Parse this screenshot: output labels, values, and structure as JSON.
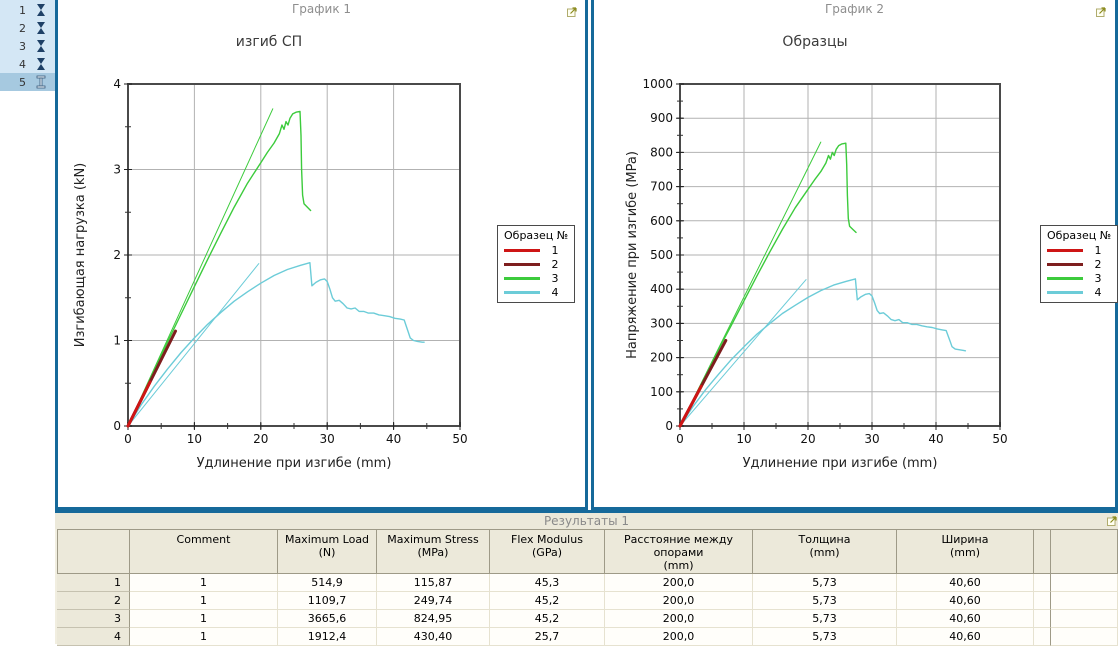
{
  "colors": {
    "panel_border": "#16699a",
    "sidebar_bg": "#d4e7f5",
    "sidebar_selected_bg": "#a6c9e0",
    "sidebar_icon": "#1e4066",
    "table_bg": "#ece9da",
    "header_text_gray": "#8e8e8e",
    "series_1": "#ce1515",
    "series_2": "#7e1e1e",
    "series_3": "#3ccb3c",
    "series_4": "#6cccd8"
  },
  "sidebar": {
    "items": [
      {
        "label": "1",
        "icon": "specimen-icon",
        "selected": false
      },
      {
        "label": "2",
        "icon": "specimen-icon",
        "selected": false
      },
      {
        "label": "3",
        "icon": "specimen-icon",
        "selected": false
      },
      {
        "label": "4",
        "icon": "specimen-icon",
        "selected": false
      },
      {
        "label": "5",
        "icon": "ibeam-cursor-icon",
        "selected": true
      }
    ]
  },
  "panels": {
    "chart1": {
      "header": "График 1",
      "export_icon": "export-icon"
    },
    "chart2": {
      "header": "График 2",
      "export_icon": "export-icon"
    }
  },
  "chart_data": [
    {
      "type": "line",
      "title": "изгиб СП",
      "xlabel": "Удлинение при изгибе (mm)",
      "ylabel": "Изгибающая нагрузка (kN)",
      "xlim": [
        0,
        50
      ],
      "ylim": [
        0,
        4
      ],
      "xticks": [
        0,
        10,
        20,
        30,
        40,
        50
      ],
      "yticks": [
        0,
        1,
        2,
        3,
        4
      ],
      "x_minor_step": 5,
      "y_minor_step": 0.5,
      "grid": true,
      "legend": {
        "title": "Образец №",
        "position": "right",
        "entries": [
          {
            "label": "1",
            "color": "#ce1515"
          },
          {
            "label": "2",
            "color": "#7e1e1e"
          },
          {
            "label": "3",
            "color": "#3ccb3c"
          },
          {
            "label": "4",
            "color": "#6cccd8"
          }
        ]
      },
      "series": [
        {
          "name": "3-fit",
          "color": "#3ccb3c",
          "width": 1,
          "points": [
            [
              0,
              0
            ],
            [
              21.8,
              3.71
            ]
          ]
        },
        {
          "name": "3",
          "color": "#3ccb3c",
          "width": 1.4,
          "points": [
            [
              0,
              0
            ],
            [
              2,
              0.33
            ],
            [
              4,
              0.66
            ],
            [
              6,
              0.99
            ],
            [
              8,
              1.31
            ],
            [
              10,
              1.63
            ],
            [
              12,
              1.95
            ],
            [
              14,
              2.26
            ],
            [
              16,
              2.56
            ],
            [
              18,
              2.84
            ],
            [
              20,
              3.08
            ],
            [
              21,
              3.2
            ],
            [
              22,
              3.31
            ],
            [
              22.8,
              3.42
            ],
            [
              23.2,
              3.52
            ],
            [
              23.5,
              3.47
            ],
            [
              23.8,
              3.56
            ],
            [
              24.1,
              3.52
            ],
            [
              24.4,
              3.6
            ],
            [
              24.8,
              3.65
            ],
            [
              25.3,
              3.67
            ],
            [
              25.9,
              3.68
            ],
            [
              26.05,
              3.4
            ],
            [
              26.15,
              3.0
            ],
            [
              26.3,
              2.7
            ],
            [
              26.5,
              2.6
            ],
            [
              27,
              2.56
            ],
            [
              27.5,
              2.52
            ]
          ]
        },
        {
          "name": "4-fit",
          "color": "#6cccd8",
          "width": 1,
          "points": [
            [
              0,
              0
            ],
            [
              19.7,
              1.9
            ]
          ]
        },
        {
          "name": "4",
          "color": "#6cccd8",
          "width": 1.4,
          "points": [
            [
              0,
              0
            ],
            [
              2,
              0.25
            ],
            [
              4,
              0.47
            ],
            [
              6,
              0.67
            ],
            [
              8,
              0.86
            ],
            [
              10,
              1.03
            ],
            [
              12,
              1.19
            ],
            [
              14,
              1.33
            ],
            [
              16,
              1.46
            ],
            [
              18,
              1.57
            ],
            [
              20,
              1.67
            ],
            [
              22,
              1.76
            ],
            [
              24,
              1.83
            ],
            [
              26,
              1.88
            ],
            [
              27.4,
              1.91
            ],
            [
              27.7,
              1.64
            ],
            [
              28.3,
              1.68
            ],
            [
              29,
              1.71
            ],
            [
              29.6,
              1.72
            ],
            [
              30,
              1.69
            ],
            [
              30.4,
              1.6
            ],
            [
              30.8,
              1.5
            ],
            [
              31.2,
              1.46
            ],
            [
              31.8,
              1.47
            ],
            [
              32.4,
              1.43
            ],
            [
              33,
              1.38
            ],
            [
              33.6,
              1.37
            ],
            [
              34.2,
              1.38
            ],
            [
              34.8,
              1.34
            ],
            [
              35.5,
              1.34
            ],
            [
              36.2,
              1.32
            ],
            [
              37,
              1.32
            ],
            [
              37.8,
              1.3
            ],
            [
              38.6,
              1.29
            ],
            [
              39.4,
              1.28
            ],
            [
              40.2,
              1.26
            ],
            [
              41,
              1.25
            ],
            [
              41.6,
              1.24
            ],
            [
              41.9,
              1.17
            ],
            [
              42.2,
              1.1
            ],
            [
              42.5,
              1.03
            ],
            [
              43,
              1.0
            ],
            [
              43.6,
              0.99
            ],
            [
              44.3,
              0.98
            ],
            [
              44.6,
              0.98
            ]
          ]
        },
        {
          "name": "2",
          "color": "#7e1e1e",
          "width": 3,
          "points": [
            [
              0,
              0
            ],
            [
              7.15,
              1.11
            ]
          ]
        },
        {
          "name": "1",
          "color": "#ce1515",
          "width": 3,
          "points": [
            [
              0,
              0
            ],
            [
              3.32,
              0.515
            ]
          ]
        }
      ]
    },
    {
      "type": "line",
      "title": "Образцы",
      "xlabel": "Удлинение при изгибе (mm)",
      "ylabel": "Напряжение при изгибе (MPa)",
      "xlim": [
        0,
        50
      ],
      "ylim": [
        0,
        1000
      ],
      "xticks": [
        0,
        10,
        20,
        30,
        40,
        50
      ],
      "yticks": [
        0,
        100,
        200,
        300,
        400,
        500,
        600,
        700,
        800,
        900,
        1000
      ],
      "x_minor_step": 5,
      "y_minor_step": 50,
      "grid": true,
      "legend": {
        "title": "Образец №",
        "position": "right",
        "entries": [
          {
            "label": "1",
            "color": "#ce1515"
          },
          {
            "label": "2",
            "color": "#7e1e1e"
          },
          {
            "label": "3",
            "color": "#3ccb3c"
          },
          {
            "label": "4",
            "color": "#6cccd8"
          }
        ]
      },
      "series": [
        {
          "name": "3-fit",
          "color": "#3ccb3c",
          "width": 1,
          "points": [
            [
              0,
              0
            ],
            [
              22,
              830
            ]
          ]
        },
        {
          "name": "3",
          "color": "#3ccb3c",
          "width": 1.4,
          "points": [
            [
              0,
              0
            ],
            [
              2,
              74
            ],
            [
              4,
              148
            ],
            [
              6,
              223
            ],
            [
              8,
              294
            ],
            [
              10,
              366
            ],
            [
              12,
              438
            ],
            [
              14,
              508
            ],
            [
              16,
              575
            ],
            [
              18,
              638
            ],
            [
              20,
              692
            ],
            [
              21,
              719
            ],
            [
              22,
              744
            ],
            [
              22.8,
              769
            ],
            [
              23.2,
              791
            ],
            [
              23.5,
              780
            ],
            [
              23.8,
              800
            ],
            [
              24.1,
              791
            ],
            [
              24.4,
              809
            ],
            [
              24.8,
              820
            ],
            [
              25.3,
              825
            ],
            [
              25.9,
              827
            ],
            [
              26.05,
              764
            ],
            [
              26.15,
              674
            ],
            [
              26.3,
              607
            ],
            [
              26.5,
              584
            ],
            [
              27,
              575
            ],
            [
              27.5,
              566
            ]
          ]
        },
        {
          "name": "4-fit",
          "color": "#6cccd8",
          "width": 1,
          "points": [
            [
              0,
              0
            ],
            [
              19.7,
              428
            ]
          ]
        },
        {
          "name": "4",
          "color": "#6cccd8",
          "width": 1.4,
          "points": [
            [
              0,
              0
            ],
            [
              2,
              56
            ],
            [
              4,
              106
            ],
            [
              6,
              151
            ],
            [
              8,
              194
            ],
            [
              10,
              232
            ],
            [
              12,
              268
            ],
            [
              14,
              299
            ],
            [
              16,
              329
            ],
            [
              18,
              353
            ],
            [
              20,
              376
            ],
            [
              22,
              396
            ],
            [
              24,
              412
            ],
            [
              26,
              423
            ],
            [
              27.4,
              430
            ],
            [
              27.7,
              369
            ],
            [
              28.3,
              378
            ],
            [
              29,
              385
            ],
            [
              29.6,
              387
            ],
            [
              30,
              380
            ],
            [
              30.4,
              360
            ],
            [
              30.8,
              338
            ],
            [
              31.2,
              329
            ],
            [
              31.8,
              331
            ],
            [
              32.4,
              322
            ],
            [
              33,
              311
            ],
            [
              33.6,
              308
            ],
            [
              34.2,
              311
            ],
            [
              34.8,
              302
            ],
            [
              35.5,
              302
            ],
            [
              36.2,
              297
            ],
            [
              37,
              297
            ],
            [
              37.8,
              293
            ],
            [
              38.6,
              290
            ],
            [
              39.4,
              288
            ],
            [
              40.2,
              284
            ],
            [
              41,
              281
            ],
            [
              41.6,
              279
            ],
            [
              41.9,
              263
            ],
            [
              42.2,
              248
            ],
            [
              42.5,
              232
            ],
            [
              43,
              225
            ],
            [
              43.6,
              223
            ],
            [
              44.3,
              221
            ],
            [
              44.6,
              220
            ]
          ]
        },
        {
          "name": "2",
          "color": "#7e1e1e",
          "width": 3,
          "points": [
            [
              0,
              0
            ],
            [
              7.15,
              250
            ]
          ]
        },
        {
          "name": "1",
          "color": "#ce1515",
          "width": 3,
          "points": [
            [
              0,
              0
            ],
            [
              3.32,
              116
            ]
          ]
        }
      ]
    }
  ],
  "results_table": {
    "title": "Результаты 1",
    "export_icon": "export-icon",
    "columns": [
      "",
      "Comment",
      "Maximum Load\n(N)",
      "Maximum Stress\n(MPa)",
      "Flex Modulus\n(GPa)",
      "Расстояние между\nопорами\n(mm)",
      "Толщина\n(mm)",
      "Ширина\n(mm)",
      "",
      ""
    ],
    "rows": [
      [
        "1",
        "1",
        "514,9",
        "115,87",
        "45,3",
        "200,0",
        "5,73",
        "40,60",
        "",
        ""
      ],
      [
        "2",
        "1",
        "1109,7",
        "249,74",
        "45,2",
        "200,0",
        "5,73",
        "40,60",
        "",
        ""
      ],
      [
        "3",
        "1",
        "3665,6",
        "824,95",
        "45,2",
        "200,0",
        "5,73",
        "40,60",
        "",
        ""
      ],
      [
        "4",
        "1",
        "1912,4",
        "430,40",
        "25,7",
        "200,0",
        "5,73",
        "40,60",
        "",
        ""
      ]
    ]
  }
}
